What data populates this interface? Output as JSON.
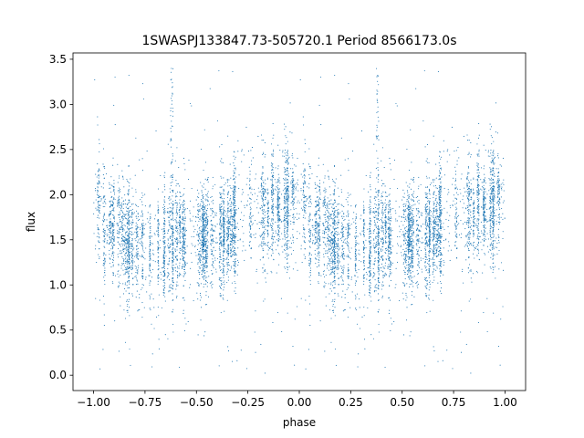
{
  "chart_data": {
    "type": "scatter",
    "title": "1SWASPJ133847.73-505720.1 Period 8566173.0s",
    "xlabel": "phase",
    "ylabel": "flux",
    "xlim": [
      -1.1,
      1.1
    ],
    "ylim": [
      -0.17,
      3.57
    ],
    "xticks": [
      -1.0,
      -0.75,
      -0.5,
      -0.25,
      0.0,
      0.25,
      0.5,
      0.75,
      1.0
    ],
    "xtick_labels": [
      "−1.00",
      "−0.75",
      "−0.50",
      "−0.25",
      "0.00",
      "0.25",
      "0.50",
      "0.75",
      "1.00"
    ],
    "yticks": [
      0.0,
      0.5,
      1.0,
      1.5,
      2.0,
      2.5,
      3.0,
      3.5
    ],
    "ytick_labels": [
      "0.0",
      "0.5",
      "1.0",
      "1.5",
      "2.0",
      "2.5",
      "3.0",
      "3.5"
    ],
    "grid": false,
    "legend": "none",
    "series_color": "#1f77b4",
    "phase_range": [
      -1.0,
      1.0
    ],
    "folded_period_in_phase": 1.0,
    "flux_profile_phase": [
      0.0,
      0.1,
      0.2,
      0.3,
      0.4,
      0.5,
      0.6,
      0.7,
      0.75,
      0.8,
      0.9,
      1.0
    ],
    "flux_profile_median": [
      1.9,
      1.55,
      1.4,
      1.5,
      1.45,
      1.5,
      1.55,
      1.7,
      1.95,
      1.8,
      1.85,
      1.9
    ],
    "flux_spread": 0.3,
    "outlier_flux_range": [
      0.0,
      3.45
    ],
    "spike_phases": [
      -0.62,
      0.38
    ],
    "spike_peak_flux": 3.4,
    "approx_point_count": 9000
  }
}
